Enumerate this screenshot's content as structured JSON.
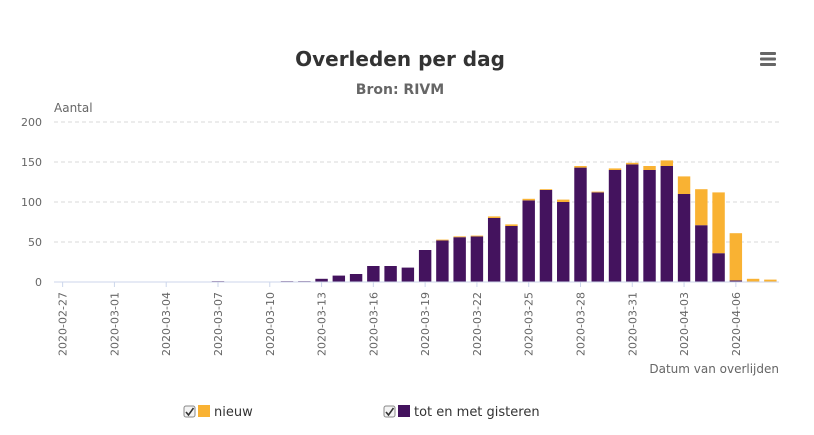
{
  "chart_data": {
    "type": "bar",
    "stacked": true,
    "title": "Overleden per dag",
    "subtitle": "Bron: RIVM",
    "ylabel": "Aantal",
    "xlabel": "Datum van overlijden",
    "ylim": [
      0,
      200
    ],
    "yticks": [
      0,
      50,
      100,
      150,
      200
    ],
    "grid": true,
    "legend_position": "bottom",
    "x": [
      "2020-02-27",
      "2020-02-28",
      "2020-02-29",
      "2020-03-01",
      "2020-03-02",
      "2020-03-03",
      "2020-03-04",
      "2020-03-05",
      "2020-03-06",
      "2020-03-07",
      "2020-03-08",
      "2020-03-09",
      "2020-03-10",
      "2020-03-11",
      "2020-03-12",
      "2020-03-13",
      "2020-03-14",
      "2020-03-15",
      "2020-03-16",
      "2020-03-17",
      "2020-03-18",
      "2020-03-19",
      "2020-03-20",
      "2020-03-21",
      "2020-03-22",
      "2020-03-23",
      "2020-03-24",
      "2020-03-25",
      "2020-03-26",
      "2020-03-27",
      "2020-03-28",
      "2020-03-29",
      "2020-03-30",
      "2020-03-31",
      "2020-04-01",
      "2020-04-02",
      "2020-04-03",
      "2020-04-04",
      "2020-04-05",
      "2020-04-06",
      "2020-04-07",
      "2020-04-08"
    ],
    "x_tick_labels": [
      "2020-02-27",
      "2020-03-01",
      "2020-03-04",
      "2020-03-07",
      "2020-03-10",
      "2020-03-13",
      "2020-03-16",
      "2020-03-19",
      "2020-03-22",
      "2020-03-25",
      "2020-03-28",
      "2020-03-31",
      "2020-04-03",
      "2020-04-06"
    ],
    "series": [
      {
        "name": "tot en met gisteren",
        "color": "#44135e",
        "values": [
          0,
          0,
          0,
          0,
          0,
          0,
          0,
          0,
          0,
          1,
          0,
          0,
          0,
          1,
          1,
          4,
          8,
          10,
          20,
          20,
          18,
          40,
          52,
          56,
          57,
          80,
          70,
          102,
          115,
          100,
          143,
          112,
          140,
          147,
          140,
          145,
          110,
          71,
          36,
          2,
          0,
          0
        ]
      },
      {
        "name": "nieuw",
        "color": "#f9b233",
        "values": [
          0,
          0,
          0,
          0,
          0,
          0,
          0,
          0,
          0,
          0,
          0,
          0,
          0,
          0,
          0,
          0,
          0,
          0,
          0,
          0,
          0,
          0,
          1,
          1,
          1,
          2,
          2,
          2,
          1,
          3,
          2,
          1,
          2,
          2,
          5,
          7,
          22,
          45,
          76,
          59,
          4,
          3
        ]
      }
    ],
    "legend": [
      {
        "label": "nieuw",
        "color": "#f9b233",
        "checked": true
      },
      {
        "label": "tot en met gisteren",
        "color": "#44135e",
        "checked": true
      }
    ],
    "menu_icon": "hamburger-menu-icon"
  }
}
